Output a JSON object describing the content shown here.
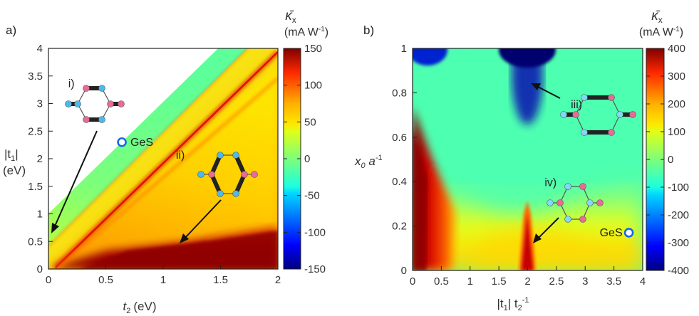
{
  "panels": [
    {
      "label": "a)",
      "chart_data": {
        "type": "heatmap",
        "title": "",
        "xlabel_main": "t",
        "xlabel_sub": "2",
        "xlabel_unit": "(eV)",
        "ylabel_main": "|t",
        "ylabel_sub": "1",
        "ylabel_end": "|",
        "ylabel_unit": "(eV)",
        "xlim": [
          0,
          2
        ],
        "ylim": [
          0,
          4
        ],
        "xticks": [
          "0",
          "0.5",
          "1",
          "1.5",
          "2"
        ],
        "yticks": [
          "0",
          "0.5",
          "1",
          "1.5",
          "2",
          "2.5",
          "3",
          "3.5",
          "4"
        ],
        "colorbar": {
          "symbol": "κ̄",
          "symbol_sub": "x",
          "unit_text": "(mA W",
          "unit_sup": "-1",
          "unit_end": ")",
          "range": [
            -150,
            150
          ],
          "ticks": [
            "150",
            "100",
            "50",
            "0",
            "-50",
            "-100",
            "-150"
          ]
        },
        "annotations": [
          {
            "text": "i)",
            "x": 0.2,
            "y": 3.3
          },
          {
            "text": "ii)",
            "x": 1.15,
            "y": 2.0
          },
          {
            "text": "GeS",
            "x": 0.64,
            "y": 2.3,
            "marker": "open-circle"
          }
        ]
      }
    },
    {
      "label": "b)",
      "chart_data": {
        "type": "heatmap",
        "title": "",
        "xlabel_pre": "|t",
        "xlabel_pre_sub": "1",
        "xlabel_mid": "| t",
        "xlabel_mid_sub": "2",
        "xlabel_sup": "-1",
        "ylabel_main": "x",
        "ylabel_sub": "0",
        "ylabel_mid": " a",
        "ylabel_sup": "-1",
        "xlim": [
          0,
          4
        ],
        "ylim": [
          0,
          1
        ],
        "xticks": [
          "0",
          "0.5",
          "1",
          "1.5",
          "2",
          "2.5",
          "3",
          "3.5",
          "4"
        ],
        "yticks": [
          "0",
          "0.2",
          "0.4",
          "0.6",
          "0.8",
          "1"
        ],
        "colorbar": {
          "symbol": "κ̄",
          "symbol_sub": "x",
          "unit_text": "(mA W",
          "unit_sup": "-1",
          "unit_end": ")",
          "range": [
            -400,
            400
          ],
          "ticks": [
            "400",
            "300",
            "200",
            "100",
            "0",
            "-100",
            "-200",
            "-300",
            "-400"
          ]
        },
        "annotations": [
          {
            "text": "iii)",
            "x": 2.85,
            "y": 0.73
          },
          {
            "text": "iv)",
            "x": 2.4,
            "y": 0.38
          },
          {
            "text": "GeS",
            "x": 3.76,
            "y": 0.17,
            "marker": "open-circle"
          }
        ]
      }
    }
  ]
}
